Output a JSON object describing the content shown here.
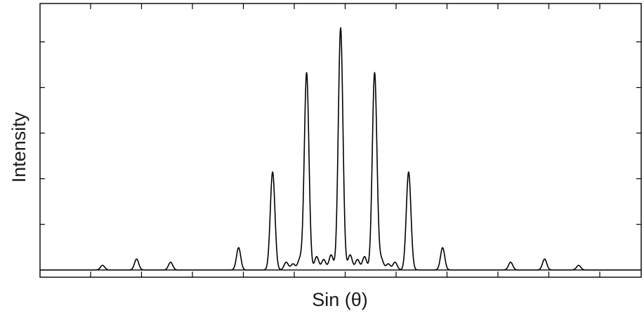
{
  "chart_data": {
    "type": "line",
    "title": "",
    "xlabel": "Sin (θ)",
    "ylabel": "Intensity",
    "xlim": [
      -1,
      1
    ],
    "ylim": [
      -0.03,
      1.1
    ],
    "x_tick_count": 12,
    "y_tick_count": 5,
    "x_tick_labels": [],
    "y_tick_labels": [],
    "grid": false,
    "legend": "none",
    "colors": {
      "line": "#000000",
      "axes": "#000000",
      "background": "#ffffff"
    },
    "peaks": [
      {
        "x": -0.875,
        "y": 0.019
      },
      {
        "x": -0.75,
        "y": 0.045
      },
      {
        "x": -0.625,
        "y": 0.032
      },
      {
        "x": -0.375,
        "y": 0.092
      },
      {
        "x": -0.25,
        "y": 0.405
      },
      {
        "x": -0.2,
        "y": 0.032
      },
      {
        "x": -0.175,
        "y": 0.025
      },
      {
        "x": -0.15,
        "y": 0.043
      },
      {
        "x": -0.125,
        "y": 0.815
      },
      {
        "x": -0.088,
        "y": 0.055
      },
      {
        "x": -0.062,
        "y": 0.043
      },
      {
        "x": -0.035,
        "y": 0.062
      },
      {
        "x": 0.0,
        "y": 1.0
      },
      {
        "x": 0.035,
        "y": 0.062
      },
      {
        "x": 0.062,
        "y": 0.043
      },
      {
        "x": 0.088,
        "y": 0.055
      },
      {
        "x": 0.125,
        "y": 0.815
      },
      {
        "x": 0.15,
        "y": 0.043
      },
      {
        "x": 0.175,
        "y": 0.025
      },
      {
        "x": 0.2,
        "y": 0.032
      },
      {
        "x": 0.25,
        "y": 0.405
      },
      {
        "x": 0.375,
        "y": 0.092
      },
      {
        "x": 0.625,
        "y": 0.032
      },
      {
        "x": 0.75,
        "y": 0.045
      },
      {
        "x": 0.875,
        "y": 0.019
      }
    ]
  }
}
